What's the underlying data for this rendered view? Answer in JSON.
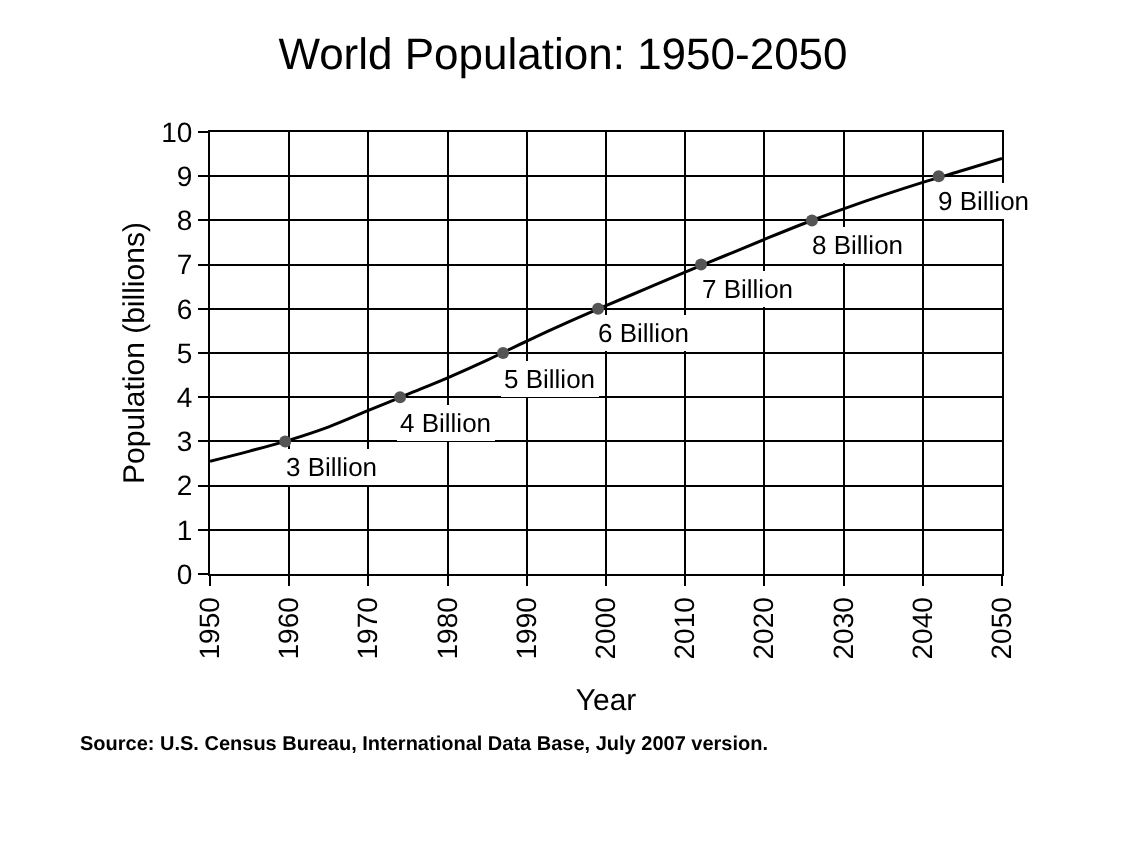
{
  "chart_data": {
    "type": "line",
    "title": "World Population: 1950-2050",
    "xlabel": "Year",
    "ylabel": "Population (billions)",
    "xlim": [
      1950,
      2050
    ],
    "xticks": [
      1950,
      1960,
      1970,
      1980,
      1990,
      2000,
      2010,
      2020,
      2030,
      2040,
      2050
    ],
    "ylim": [
      0,
      10
    ],
    "yticks": [
      0,
      1,
      2,
      3,
      4,
      5,
      6,
      7,
      8,
      9,
      10
    ],
    "grid": true,
    "series": [
      {
        "color": "#000000",
        "marker": "none",
        "x": [
          1950,
          1955,
          1960,
          1965,
          1970,
          1975,
          1980,
          1985,
          1990,
          1995,
          2000,
          2005,
          2010,
          2015,
          2020,
          2025,
          2030,
          2035,
          2040,
          2045,
          2050
        ],
        "values": [
          2.55,
          2.78,
          3.03,
          3.33,
          3.7,
          4.07,
          4.44,
          4.84,
          5.27,
          5.68,
          6.07,
          6.45,
          6.83,
          7.2,
          7.57,
          7.93,
          8.26,
          8.57,
          8.86,
          9.13,
          9.4
        ]
      },
      {
        "type": "scatter",
        "color": "#555555",
        "marker": "circle",
        "x": [
          1959.5,
          1974,
          1987,
          1999,
          2012,
          2026,
          2042
        ],
        "values": [
          3,
          4,
          5,
          6,
          7,
          8,
          9
        ],
        "value_labels": [
          "3 Billion",
          "4 Billion",
          "5 Billion",
          "6 Billion",
          "7 Billion",
          "8 Billion",
          "9 Billion"
        ]
      }
    ],
    "annotations": [
      "Source: U.S. Census Bureau, International Data Base, July 2007 version."
    ]
  }
}
